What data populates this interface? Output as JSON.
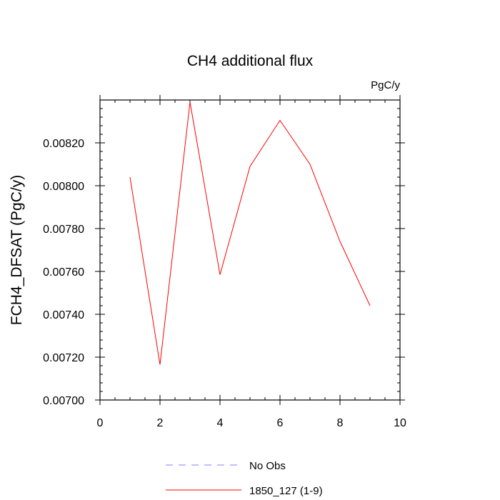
{
  "chart_data": {
    "type": "line",
    "title": "CH4 additional flux",
    "units_label": "PgC/y",
    "ylabel": "FCH4_DFSAT  (PgC/y)",
    "xlabel": "",
    "xlim": [
      0,
      10
    ],
    "ylim": [
      0.007,
      0.0084
    ],
    "x_ticks": [
      0,
      2,
      4,
      6,
      8,
      10
    ],
    "x_tick_labels": [
      "0",
      "2",
      "4",
      "6",
      "8",
      "10"
    ],
    "y_ticks": [
      0.007,
      0.0072,
      0.0074,
      0.0076,
      0.0078,
      0.008,
      0.0082
    ],
    "y_tick_labels": [
      "0.00700",
      "0.00720",
      "0.00740",
      "0.00760",
      "0.00780",
      "0.00800",
      "0.00820"
    ],
    "grid": false,
    "legend_position": "bottom",
    "series": [
      {
        "name": "1850_127 (1-9)",
        "color": "#ff0000",
        "style": "solid",
        "x": [
          1,
          2,
          3,
          4,
          5,
          6,
          7,
          8,
          9
        ],
        "y": [
          0.00804,
          0.007165,
          0.00839,
          0.007585,
          0.00809,
          0.008305,
          0.0081,
          0.00774,
          0.00744
        ]
      }
    ],
    "legend": [
      {
        "label": "No Obs",
        "color": "#8080ff",
        "style": "dashed"
      },
      {
        "label": "1850_127 (1-9)",
        "color": "#ff0000",
        "style": "solid"
      }
    ]
  }
}
